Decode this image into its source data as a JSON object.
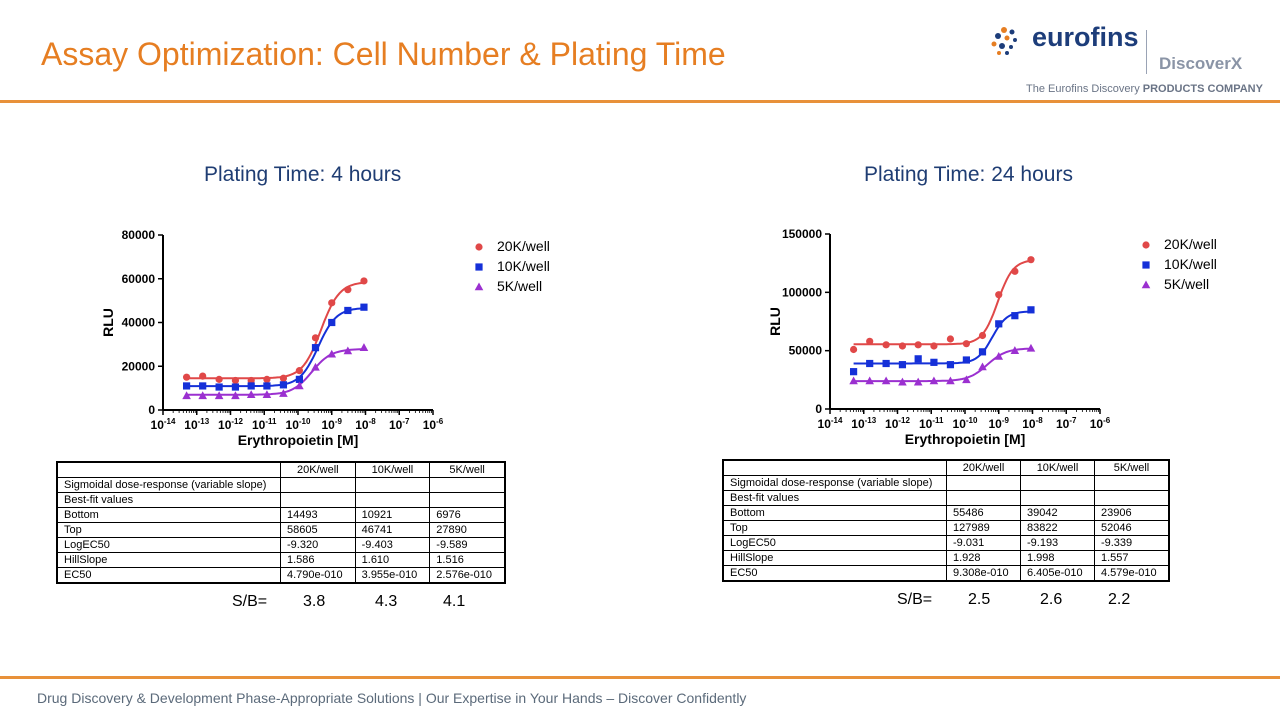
{
  "slide": {
    "title": "Assay Optimization: Cell Number & Plating Time",
    "footer": "Drug Discovery & Development Phase-Appropriate Solutions | Our Expertise in Your Hands – Discover Confidently"
  },
  "logo": {
    "word": "eurofins",
    "brand": "DiscoverX",
    "tagline_a": "The Eurofins Discovery ",
    "tagline_b": "PRODUCTS COMPANY"
  },
  "colors": {
    "accent": "#e67e22",
    "title_blue": "#1f3d73",
    "red": "#e04848",
    "blue": "#1530d8",
    "purple": "#9b30d0"
  },
  "panels": [
    {
      "title": "Plating Time: 4 hours",
      "table": {
        "headers": [
          "",
          "20K/well",
          "10K/well",
          "5K/well"
        ],
        "rows": [
          [
            "Sigmoidal dose-response (variable slope)",
            "",
            "",
            ""
          ],
          [
            "Best-fit values",
            "",
            "",
            ""
          ],
          [
            "Bottom",
            "14493",
            "10921",
            "6976"
          ],
          [
            "Top",
            "58605",
            "46741",
            "27890"
          ],
          [
            "LogEC50",
            "-9.320",
            "-9.403",
            "-9.589"
          ],
          [
            "HillSlope",
            "1.586",
            "1.610",
            "1.516"
          ],
          [
            "EC50",
            "4.790e-010",
            "3.955e-010",
            "2.576e-010"
          ]
        ]
      },
      "sb": {
        "label": "S/B=",
        "values": [
          "3.8",
          "4.3",
          "4.1"
        ]
      }
    },
    {
      "title": "Plating Time: 24 hours",
      "table": {
        "headers": [
          "",
          "20K/well",
          "10K/well",
          "5K/well"
        ],
        "rows": [
          [
            "Sigmoidal dose-response (variable slope)",
            "",
            "",
            ""
          ],
          [
            "Best-fit values",
            "",
            "",
            ""
          ],
          [
            "Bottom",
            "55486",
            "39042",
            "23906"
          ],
          [
            "Top",
            "127989",
            "83822",
            "52046"
          ],
          [
            "LogEC50",
            "-9.031",
            "-9.193",
            "-9.339"
          ],
          [
            "HillSlope",
            "1.928",
            "1.998",
            "1.557"
          ],
          [
            "EC50",
            "9.308e-010",
            "6.405e-010",
            "4.579e-010"
          ]
        ]
      },
      "sb": {
        "label": "S/B=",
        "values": [
          "2.5",
          "2.6",
          "2.2"
        ]
      }
    }
  ],
  "chart_data": [
    {
      "type": "scatter",
      "title": "Plating Time: 4 hours",
      "xlabel": "Erythropoietin [M]",
      "ylabel": "RLU",
      "x_scale": "log",
      "xlim": [
        1e-14,
        1e-06
      ],
      "ylim": [
        0,
        80000
      ],
      "yticks": [
        "0",
        "20000",
        "40000",
        "60000",
        "80000"
      ],
      "xtick_bases": [
        "10",
        "10",
        "10",
        "10",
        "10",
        "10",
        "10",
        "10",
        "10"
      ],
      "xtick_exps": [
        "-14",
        "-13",
        "-12",
        "-11",
        "-10",
        "-9",
        "-8",
        "-7",
        "-6"
      ],
      "legend_position": "top-right",
      "x": [
        5e-14,
        1.5e-13,
        4.6e-13,
        1.4e-12,
        4.1e-12,
        1.2e-11,
        3.7e-11,
        1.1e-10,
        3.3e-10,
        1e-09,
        3e-09,
        9e-09
      ],
      "series": [
        {
          "name": "20K/well",
          "marker": "circle",
          "color": "#e04848",
          "values": [
            15000,
            15500,
            14000,
            13500,
            13500,
            14000,
            14500,
            18000,
            33000,
            49000,
            55000,
            59000
          ],
          "fit": {
            "bottom": 14493,
            "top": 58605,
            "logec50": -9.32,
            "hill": 1.586
          }
        },
        {
          "name": "10K/well",
          "marker": "square",
          "color": "#1530d8",
          "values": [
            11000,
            11000,
            10500,
            10500,
            11000,
            11000,
            11500,
            14000,
            28500,
            40000,
            45500,
            47000
          ],
          "fit": {
            "bottom": 10921,
            "top": 46741,
            "logec50": -9.403,
            "hill": 1.61
          }
        },
        {
          "name": "5K/well",
          "marker": "triangle",
          "color": "#9b30d0",
          "values": [
            6500,
            6500,
            6500,
            6500,
            7000,
            7000,
            7500,
            11000,
            19500,
            25500,
            27000,
            28500
          ],
          "fit": {
            "bottom": 6976,
            "top": 27890,
            "logec50": -9.589,
            "hill": 1.516
          }
        }
      ]
    },
    {
      "type": "scatter",
      "title": "Plating Time: 24 hours",
      "xlabel": "Erythropoietin [M]",
      "ylabel": "RLU",
      "x_scale": "log",
      "xlim": [
        1e-14,
        1e-06
      ],
      "ylim": [
        0,
        150000
      ],
      "yticks": [
        "0",
        "50000",
        "100000",
        "150000"
      ],
      "xtick_bases": [
        "10",
        "10",
        "10",
        "10",
        "10",
        "10",
        "10",
        "10",
        "10"
      ],
      "xtick_exps": [
        "-14",
        "-13",
        "-12",
        "-11",
        "-10",
        "-9",
        "-8",
        "-7",
        "-6"
      ],
      "legend_position": "top-right",
      "x": [
        5e-14,
        1.5e-13,
        4.6e-13,
        1.4e-12,
        4.1e-12,
        1.2e-11,
        3.7e-11,
        1.1e-10,
        3.3e-10,
        1e-09,
        3e-09,
        9e-09
      ],
      "series": [
        {
          "name": "20K/well",
          "marker": "circle",
          "color": "#e04848",
          "values": [
            51000,
            58000,
            55000,
            54000,
            55000,
            54000,
            60000,
            56000,
            63000,
            98000,
            118000,
            128000
          ],
          "fit": {
            "bottom": 55486,
            "top": 127989,
            "logec50": -9.031,
            "hill": 1.928
          }
        },
        {
          "name": "10K/well",
          "marker": "square",
          "color": "#1530d8",
          "values": [
            32000,
            39000,
            39000,
            38000,
            43000,
            40000,
            38000,
            42000,
            49000,
            73000,
            80000,
            85000
          ],
          "fit": {
            "bottom": 39042,
            "top": 83822,
            "logec50": -9.193,
            "hill": 1.998
          }
        },
        {
          "name": "5K/well",
          "marker": "triangle",
          "color": "#9b30d0",
          "values": [
            24000,
            24000,
            24000,
            23000,
            23000,
            24000,
            24000,
            25000,
            36000,
            45000,
            50000,
            52000
          ],
          "fit": {
            "bottom": 23906,
            "top": 52046,
            "logec50": -9.339,
            "hill": 1.557
          }
        }
      ]
    }
  ]
}
